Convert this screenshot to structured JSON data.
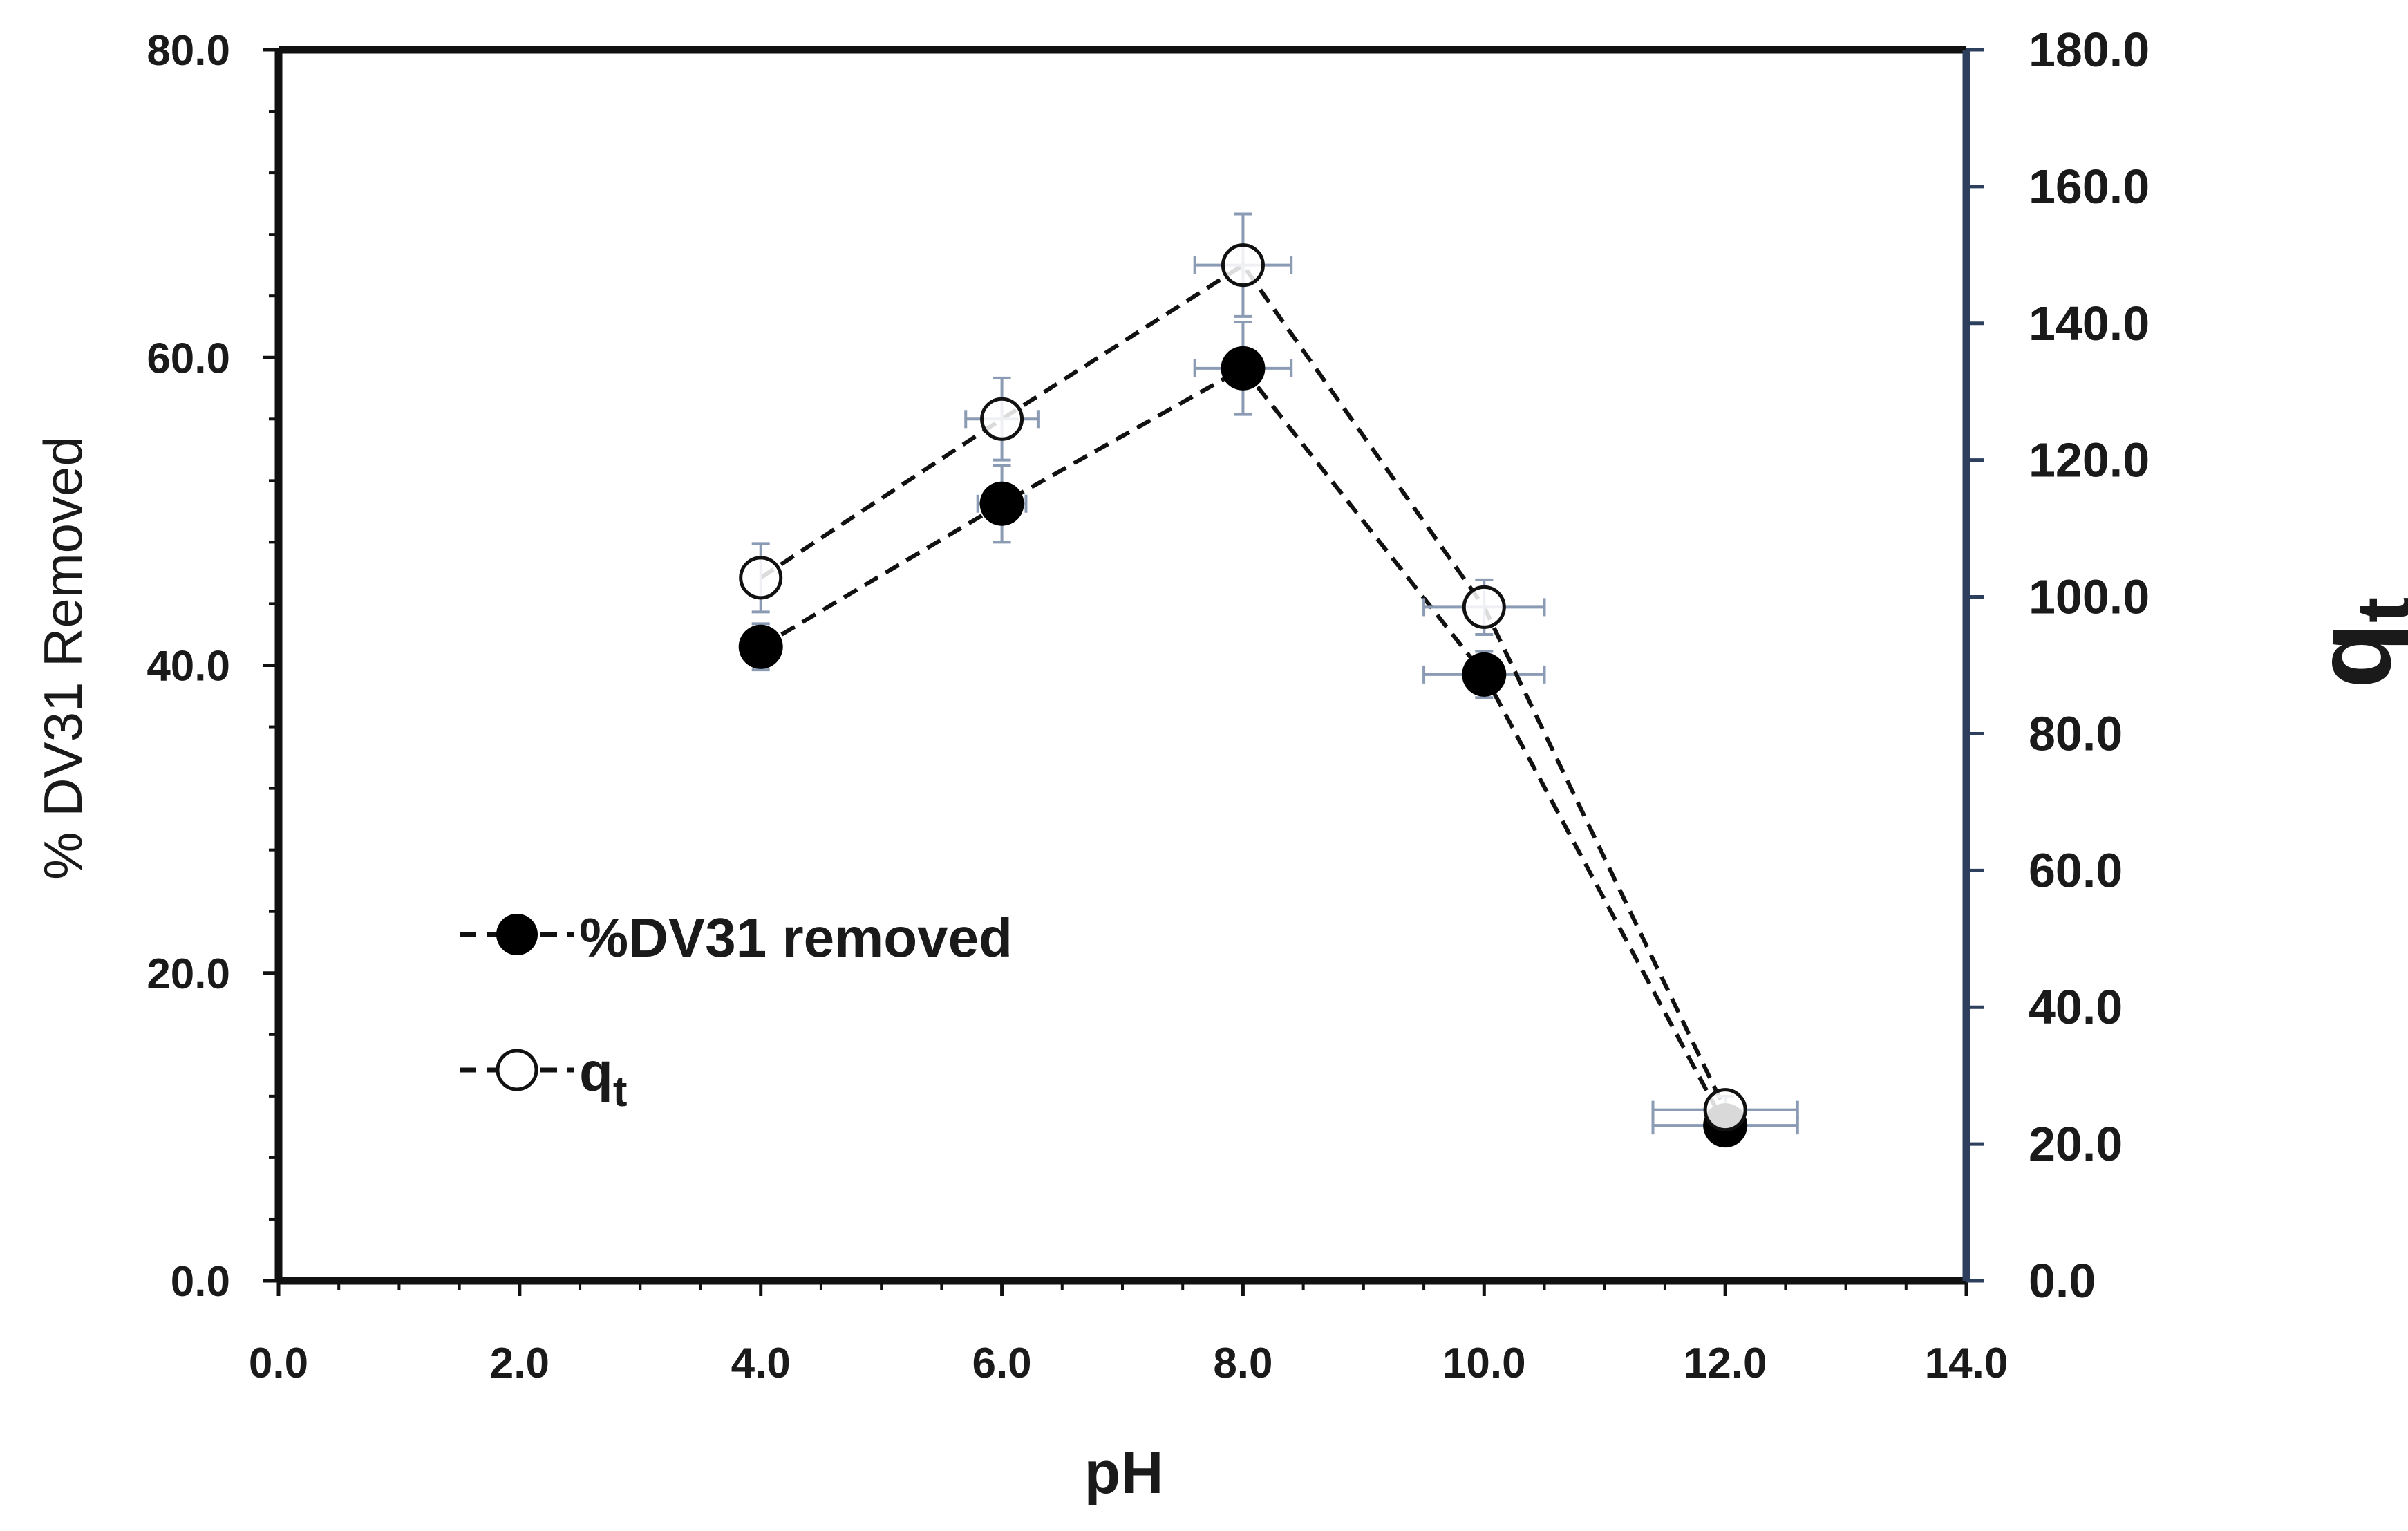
{
  "chart_data": {
    "type": "line",
    "title": "",
    "xlabel": "pH",
    "ylabel": "% DV31  Removed",
    "y2label_main": "q",
    "y2label_sub": "t",
    "xlim": [
      0,
      14
    ],
    "ylim": [
      0,
      80
    ],
    "y2lim": [
      0,
      180
    ],
    "x_ticks": [
      "0.0",
      "2.0",
      "4.0",
      "6.0",
      "8.0",
      "10.0",
      "12.0",
      "14.0"
    ],
    "y_ticks": [
      "0.0",
      "20.0",
      "40.0",
      "60.0",
      "80.0"
    ],
    "y2_ticks": [
      "0.0",
      "20.0",
      "40.0",
      "60.0",
      "80.0",
      "100.0",
      "120.0",
      "140.0",
      "160.0",
      "180.0"
    ],
    "grid": false,
    "legend_position": "lower-left",
    "series": [
      {
        "name": "%DV31 removed",
        "axis": "left",
        "marker": "filled-circle",
        "line": "dashed",
        "x": [
          4,
          6,
          8,
          10,
          12
        ],
        "y": [
          41.2,
          50.5,
          59.3,
          39.4,
          10.1
        ],
        "y_err": [
          1.5,
          2.5,
          3.0,
          1.5,
          0.8
        ],
        "x_err": [
          0.0,
          0.2,
          0.4,
          0.5,
          0.6
        ]
      },
      {
        "name": "q",
        "name_sub": "t",
        "axis": "right",
        "marker": "open-circle",
        "line": "dashed",
        "x": [
          4,
          6,
          8,
          10,
          12
        ],
        "y": [
          102.8,
          126.0,
          148.5,
          98.5,
          25.0
        ],
        "y_err": [
          5.0,
          6.0,
          7.5,
          4.0,
          2.0
        ],
        "x_err": [
          0.0,
          0.3,
          0.4,
          0.5,
          0.6
        ]
      }
    ],
    "colors": {
      "axis": "#111111",
      "right_axis": "#2c3f5c",
      "series": "#111111",
      "error_bar": "#8a9bb3"
    }
  }
}
